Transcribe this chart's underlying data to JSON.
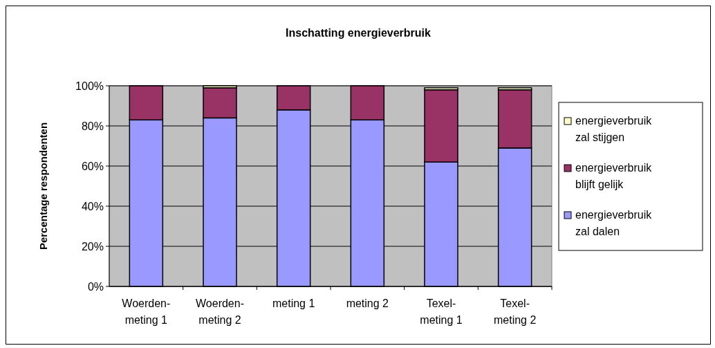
{
  "chart_data": {
    "type": "bar",
    "title": "Inschatting energieverbruik",
    "ylabel": "Percentage respondenten",
    "categories": [
      "Woerden-meting 1",
      "Woerden-meting 2",
      "meting 1",
      "meting 2",
      "Texel-meting 1",
      "Texel-meting 2"
    ],
    "stacked": true,
    "series": [
      {
        "name": "energieverbruik zal dalen",
        "color": "#9999ff",
        "values": [
          83,
          84,
          88,
          83,
          62,
          69
        ]
      },
      {
        "name": "energieverbruik blijft gelijk",
        "color": "#993366",
        "values": [
          17,
          15,
          12,
          17,
          36,
          29
        ]
      },
      {
        "name": "energieverbruik zal stijgen",
        "color": "#ffffcc",
        "values": [
          0,
          1,
          0,
          0,
          1,
          1
        ]
      }
    ],
    "ylim": [
      0,
      100
    ],
    "yticks": [
      {
        "value": 0,
        "label": "0%"
      },
      {
        "value": 20,
        "label": "20%"
      },
      {
        "value": 40,
        "label": "40%"
      },
      {
        "value": 60,
        "label": "60%"
      },
      {
        "value": 80,
        "label": "80%"
      },
      {
        "value": 100,
        "label": "100%"
      }
    ],
    "grid": "y",
    "legend": "right"
  }
}
